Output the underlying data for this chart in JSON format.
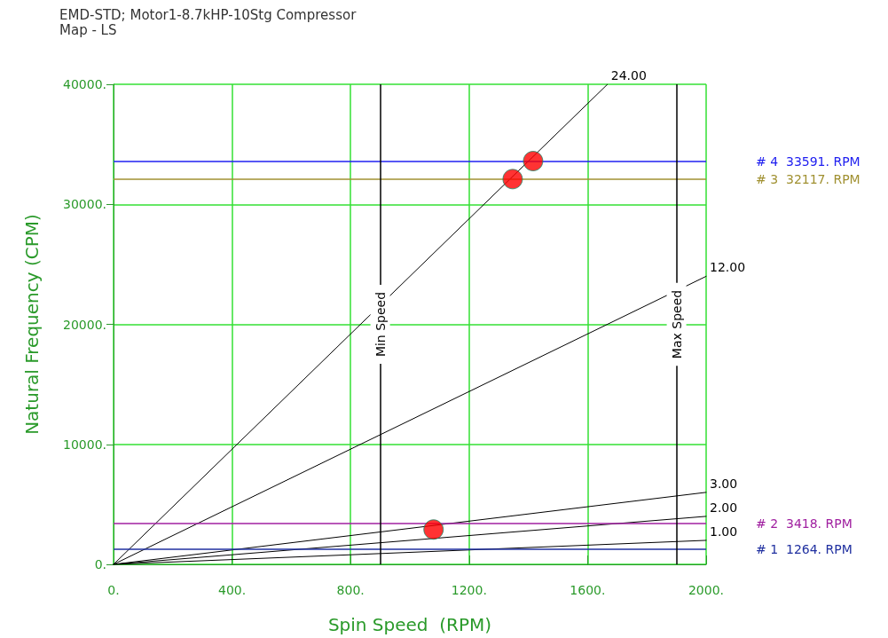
{
  "chart_data": {
    "type": "line",
    "title": "EMD-STD; Motor1-8.7kHP-10Stg Compressor",
    "subtitle": "Map - LS",
    "xlabel": "Spin Speed  (RPM)",
    "ylabel": "Natural Frequency (CPM)",
    "xlim": [
      0,
      2000
    ],
    "xticks": [
      {
        "value": 0,
        "label": "0."
      },
      {
        "value": 400,
        "label": "400."
      },
      {
        "value": 800,
        "label": "800."
      },
      {
        "value": 1200,
        "label": "1200."
      },
      {
        "value": 1600,
        "label": "1600."
      },
      {
        "value": 2000,
        "label": "2000."
      }
    ],
    "ylim": [
      0,
      40000
    ],
    "yticks": [
      {
        "value": 0,
        "label": "0."
      },
      {
        "value": 10000,
        "label": "10000."
      },
      {
        "value": 20000,
        "label": "20000."
      },
      {
        "value": 30000,
        "label": "30000."
      },
      {
        "value": 40000,
        "label": "40000."
      }
    ],
    "grid": true,
    "legend": false,
    "line_style": "solid",
    "marker": "none",
    "series": [
      {
        "name": "24.00",
        "color": "#000000",
        "x": [
          0,
          1667
        ],
        "values": [
          0,
          40000
        ]
      },
      {
        "name": "12.00",
        "color": "#000000",
        "x": [
          0,
          2000
        ],
        "values": [
          0,
          24000
        ]
      },
      {
        "name": "3.00",
        "color": "#000000",
        "x": [
          0,
          2000
        ],
        "values": [
          0,
          6000
        ]
      },
      {
        "name": "2.00",
        "color": "#000000",
        "x": [
          0,
          2000
        ],
        "values": [
          0,
          4000
        ]
      },
      {
        "name": "1.00",
        "color": "#000000",
        "x": [
          0,
          2000
        ],
        "values": [
          0,
          2000
        ]
      },
      {
        "type": "scatter",
        "marker": "circle",
        "color": "#ff0000",
        "x": [
          1347,
          1416,
          1080
        ],
        "values": [
          32100,
          33600,
          2900
        ]
      }
    ],
    "ref_lines": [
      {
        "axis": "y",
        "value": 33591,
        "label": "# 4  33591. RPM",
        "color": "#2020f0"
      },
      {
        "axis": "y",
        "value": 32117,
        "label": "# 3  32117. RPM",
        "color": "#a09030"
      },
      {
        "axis": "y",
        "value": 3418,
        "label": "# 2  3418. RPM",
        "color": "#a020a0"
      },
      {
        "axis": "y",
        "value": 1264,
        "label": "# 1  1264. RPM",
        "color": "#2030a0"
      },
      {
        "axis": "x",
        "value": 900,
        "label": "Min Speed",
        "color": "#000000"
      },
      {
        "axis": "x",
        "value": 1900,
        "label": "Max Speed",
        "color": "#000000"
      }
    ]
  }
}
